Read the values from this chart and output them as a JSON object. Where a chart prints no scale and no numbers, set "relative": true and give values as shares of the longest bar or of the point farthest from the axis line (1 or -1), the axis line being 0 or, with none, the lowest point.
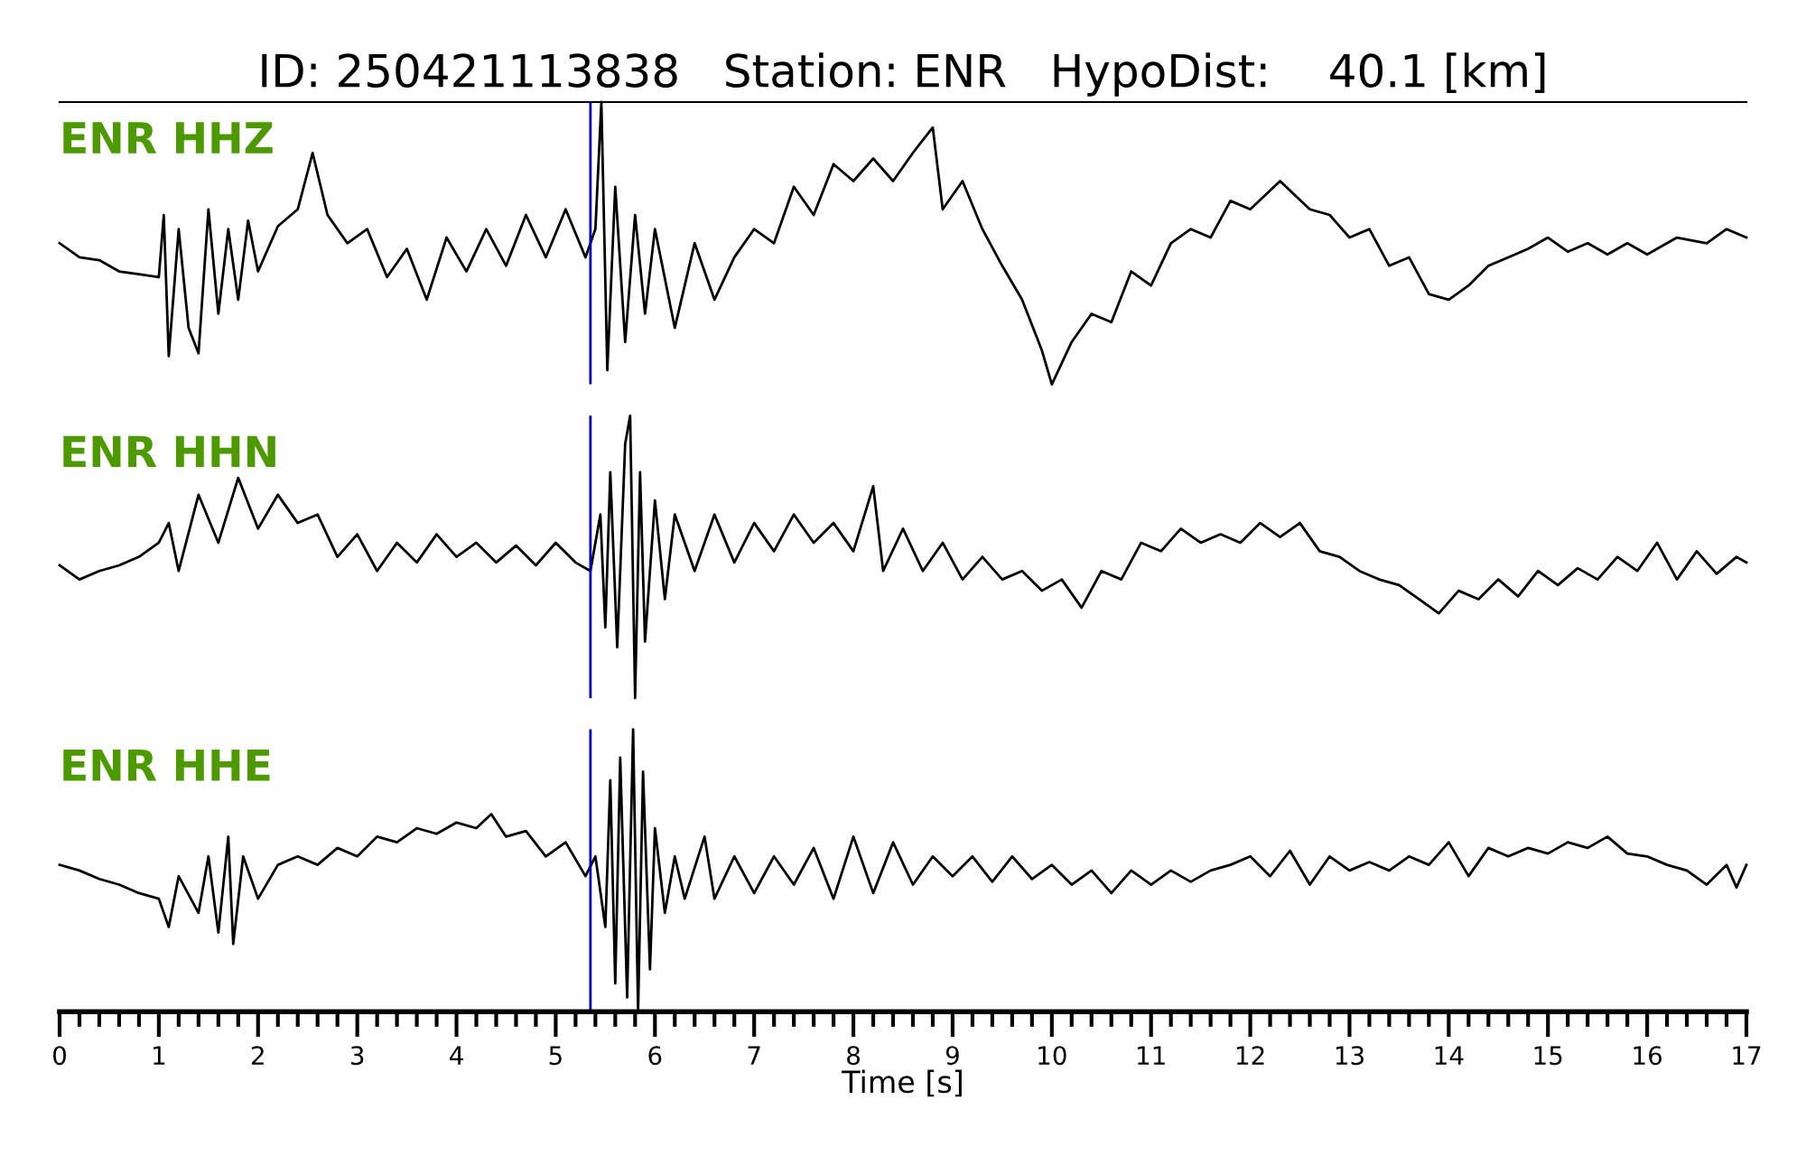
{
  "chart_data": [
    {
      "type": "line",
      "title": "ID: 250421113838   Station: ENR   HypoDist:    40.1 [km]",
      "relative": true,
      "annotations": [
        "ENR HHZ"
      ],
      "xlim": [
        0,
        17
      ],
      "xticks": [
        0,
        1,
        2,
        3,
        4,
        5,
        6,
        7,
        8,
        9,
        10,
        11,
        12,
        13,
        14,
        15,
        16,
        17
      ],
      "tick_labels": false,
      "ref_lines": [
        {
          "axis": "x",
          "value": 5.35,
          "color": "#0000cc"
        }
      ],
      "marker": "none",
      "line_style": "solid",
      "x": [
        0.0,
        0.2,
        0.4,
        0.6,
        0.8,
        1.0,
        1.05,
        1.1,
        1.2,
        1.3,
        1.4,
        1.5,
        1.6,
        1.7,
        1.8,
        1.9,
        2.0,
        2.2,
        2.4,
        2.55,
        2.7,
        2.9,
        3.1,
        3.3,
        3.5,
        3.7,
        3.9,
        4.1,
        4.3,
        4.5,
        4.7,
        4.9,
        5.1,
        5.3,
        5.4,
        5.46,
        5.52,
        5.6,
        5.7,
        5.8,
        5.9,
        6.0,
        6.2,
        6.4,
        6.6,
        6.8,
        7.0,
        7.2,
        7.4,
        7.6,
        7.8,
        8.0,
        8.2,
        8.4,
        8.6,
        8.8,
        8.9,
        9.1,
        9.3,
        9.5,
        9.7,
        9.9,
        10.0,
        10.2,
        10.4,
        10.6,
        10.8,
        11.0,
        11.2,
        11.4,
        11.6,
        11.8,
        12.0,
        12.3,
        12.6,
        12.8,
        13.0,
        13.2,
        13.4,
        13.6,
        13.8,
        14.0,
        14.2,
        14.4,
        14.6,
        14.8,
        15.0,
        15.2,
        15.4,
        15.6,
        15.8,
        16.0,
        16.3,
        16.6,
        16.8,
        17.0
      ],
      "series": [
        {
          "color": "#000000",
          "values": [
            0.5,
            0.45,
            0.44,
            0.4,
            0.39,
            0.38,
            0.6,
            0.1,
            0.55,
            0.2,
            0.11,
            0.62,
            0.25,
            0.55,
            0.3,
            0.58,
            0.4,
            0.56,
            0.62,
            0.82,
            0.6,
            0.5,
            0.55,
            0.38,
            0.48,
            0.3,
            0.52,
            0.4,
            0.55,
            0.42,
            0.6,
            0.45,
            0.62,
            0.45,
            0.55,
            1.0,
            0.05,
            0.7,
            0.15,
            0.6,
            0.25,
            0.55,
            0.2,
            0.5,
            0.3,
            0.45,
            0.55,
            0.5,
            0.7,
            0.6,
            0.78,
            0.72,
            0.8,
            0.72,
            0.82,
            0.91,
            0.62,
            0.72,
            0.55,
            0.42,
            0.3,
            0.12,
            0.0,
            0.15,
            0.25,
            0.22,
            0.4,
            0.35,
            0.5,
            0.55,
            0.52,
            0.65,
            0.62,
            0.72,
            0.62,
            0.6,
            0.52,
            0.55,
            0.42,
            0.45,
            0.32,
            0.3,
            0.35,
            0.42,
            0.45,
            0.48,
            0.52,
            0.47,
            0.5,
            0.46,
            0.5,
            0.46,
            0.52,
            0.5,
            0.55,
            0.52
          ]
        }
      ]
    },
    {
      "type": "line",
      "relative": true,
      "annotations": [
        "ENR HHN"
      ],
      "xlim": [
        0,
        17
      ],
      "xticks": [
        0,
        1,
        2,
        3,
        4,
        5,
        6,
        7,
        8,
        9,
        10,
        11,
        12,
        13,
        14,
        15,
        16,
        17
      ],
      "tick_labels": false,
      "ref_lines": [
        {
          "axis": "x",
          "value": 5.35,
          "color": "#0000cc"
        }
      ],
      "marker": "none",
      "line_style": "solid",
      "x": [
        0.0,
        0.2,
        0.4,
        0.6,
        0.8,
        1.0,
        1.1,
        1.2,
        1.4,
        1.6,
        1.8,
        2.0,
        2.2,
        2.4,
        2.6,
        2.8,
        3.0,
        3.2,
        3.4,
        3.6,
        3.8,
        4.0,
        4.2,
        4.4,
        4.6,
        4.8,
        5.0,
        5.2,
        5.35,
        5.45,
        5.5,
        5.55,
        5.62,
        5.7,
        5.75,
        5.8,
        5.85,
        5.9,
        6.0,
        6.1,
        6.2,
        6.4,
        6.6,
        6.8,
        7.0,
        7.2,
        7.4,
        7.6,
        7.8,
        8.0,
        8.2,
        8.3,
        8.5,
        8.7,
        8.9,
        9.1,
        9.3,
        9.5,
        9.7,
        9.9,
        10.1,
        10.3,
        10.5,
        10.7,
        10.9,
        11.1,
        11.3,
        11.5,
        11.7,
        11.9,
        12.1,
        12.3,
        12.5,
        12.7,
        12.9,
        13.1,
        13.3,
        13.5,
        13.7,
        13.9,
        14.1,
        14.3,
        14.5,
        14.7,
        14.9,
        15.1,
        15.3,
        15.5,
        15.7,
        15.9,
        16.1,
        16.3,
        16.5,
        16.7,
        16.9,
        17.0
      ],
      "series": [
        {
          "color": "#000000",
          "values": [
            0.47,
            0.42,
            0.45,
            0.47,
            0.5,
            0.55,
            0.62,
            0.45,
            0.72,
            0.55,
            0.78,
            0.6,
            0.72,
            0.62,
            0.65,
            0.5,
            0.58,
            0.45,
            0.55,
            0.48,
            0.58,
            0.5,
            0.55,
            0.48,
            0.54,
            0.47,
            0.55,
            0.48,
            0.45,
            0.65,
            0.25,
            0.8,
            0.18,
            0.9,
            1.0,
            0.0,
            0.8,
            0.2,
            0.7,
            0.35,
            0.65,
            0.45,
            0.65,
            0.48,
            0.62,
            0.52,
            0.65,
            0.55,
            0.62,
            0.52,
            0.75,
            0.45,
            0.6,
            0.45,
            0.55,
            0.42,
            0.5,
            0.42,
            0.45,
            0.38,
            0.42,
            0.32,
            0.45,
            0.42,
            0.55,
            0.52,
            0.6,
            0.55,
            0.58,
            0.55,
            0.62,
            0.57,
            0.62,
            0.52,
            0.5,
            0.45,
            0.42,
            0.4,
            0.35,
            0.3,
            0.38,
            0.35,
            0.42,
            0.36,
            0.45,
            0.4,
            0.46,
            0.42,
            0.5,
            0.45,
            0.55,
            0.42,
            0.52,
            0.44,
            0.5,
            0.48
          ]
        }
      ]
    },
    {
      "type": "line",
      "relative": true,
      "annotations": [
        "ENR HHE"
      ],
      "xlabel": "Time [s]",
      "xlim": [
        0,
        17
      ],
      "xticks": [
        0,
        1,
        2,
        3,
        4,
        5,
        6,
        7,
        8,
        9,
        10,
        11,
        12,
        13,
        14,
        15,
        16,
        17
      ],
      "tick_labels": "x",
      "ref_lines": [
        {
          "axis": "x",
          "value": 5.35,
          "color": "#0000cc"
        }
      ],
      "marker": "none",
      "line_style": "solid",
      "x": [
        0.0,
        0.2,
        0.4,
        0.6,
        0.8,
        1.0,
        1.1,
        1.2,
        1.4,
        1.5,
        1.6,
        1.7,
        1.75,
        1.85,
        2.0,
        2.2,
        2.4,
        2.6,
        2.8,
        3.0,
        3.2,
        3.4,
        3.6,
        3.8,
        4.0,
        4.2,
        4.35,
        4.5,
        4.7,
        4.9,
        5.1,
        5.3,
        5.4,
        5.5,
        5.55,
        5.6,
        5.65,
        5.72,
        5.78,
        5.83,
        5.88,
        5.95,
        6.0,
        6.1,
        6.2,
        6.3,
        6.5,
        6.6,
        6.8,
        7.0,
        7.2,
        7.4,
        7.6,
        7.8,
        8.0,
        8.2,
        8.4,
        8.6,
        8.8,
        9.0,
        9.2,
        9.4,
        9.6,
        9.8,
        10.0,
        10.2,
        10.4,
        10.6,
        10.8,
        11.0,
        11.2,
        11.4,
        11.6,
        11.8,
        12.0,
        12.2,
        12.4,
        12.6,
        12.8,
        13.0,
        13.2,
        13.4,
        13.6,
        13.8,
        14.0,
        14.2,
        14.4,
        14.6,
        14.8,
        15.0,
        15.2,
        15.4,
        15.6,
        15.8,
        16.0,
        16.2,
        16.4,
        16.6,
        16.8,
        16.9,
        17.0
      ],
      "series": [
        {
          "color": "#000000",
          "values": [
            0.52,
            0.5,
            0.47,
            0.45,
            0.42,
            0.4,
            0.3,
            0.48,
            0.35,
            0.55,
            0.28,
            0.62,
            0.24,
            0.55,
            0.4,
            0.52,
            0.55,
            0.52,
            0.58,
            0.55,
            0.62,
            0.6,
            0.65,
            0.63,
            0.67,
            0.65,
            0.7,
            0.62,
            0.64,
            0.55,
            0.6,
            0.48,
            0.55,
            0.3,
            0.82,
            0.1,
            0.9,
            0.05,
            1.0,
            0.0,
            0.85,
            0.15,
            0.65,
            0.35,
            0.55,
            0.4,
            0.62,
            0.4,
            0.55,
            0.42,
            0.55,
            0.45,
            0.58,
            0.4,
            0.62,
            0.42,
            0.6,
            0.45,
            0.55,
            0.48,
            0.55,
            0.46,
            0.55,
            0.47,
            0.52,
            0.45,
            0.5,
            0.42,
            0.5,
            0.45,
            0.5,
            0.46,
            0.5,
            0.52,
            0.55,
            0.48,
            0.57,
            0.45,
            0.55,
            0.5,
            0.53,
            0.5,
            0.55,
            0.52,
            0.6,
            0.48,
            0.58,
            0.55,
            0.58,
            0.56,
            0.6,
            0.58,
            0.62,
            0.56,
            0.55,
            0.52,
            0.5,
            0.45,
            0.52,
            0.44,
            0.52
          ]
        }
      ]
    }
  ]
}
